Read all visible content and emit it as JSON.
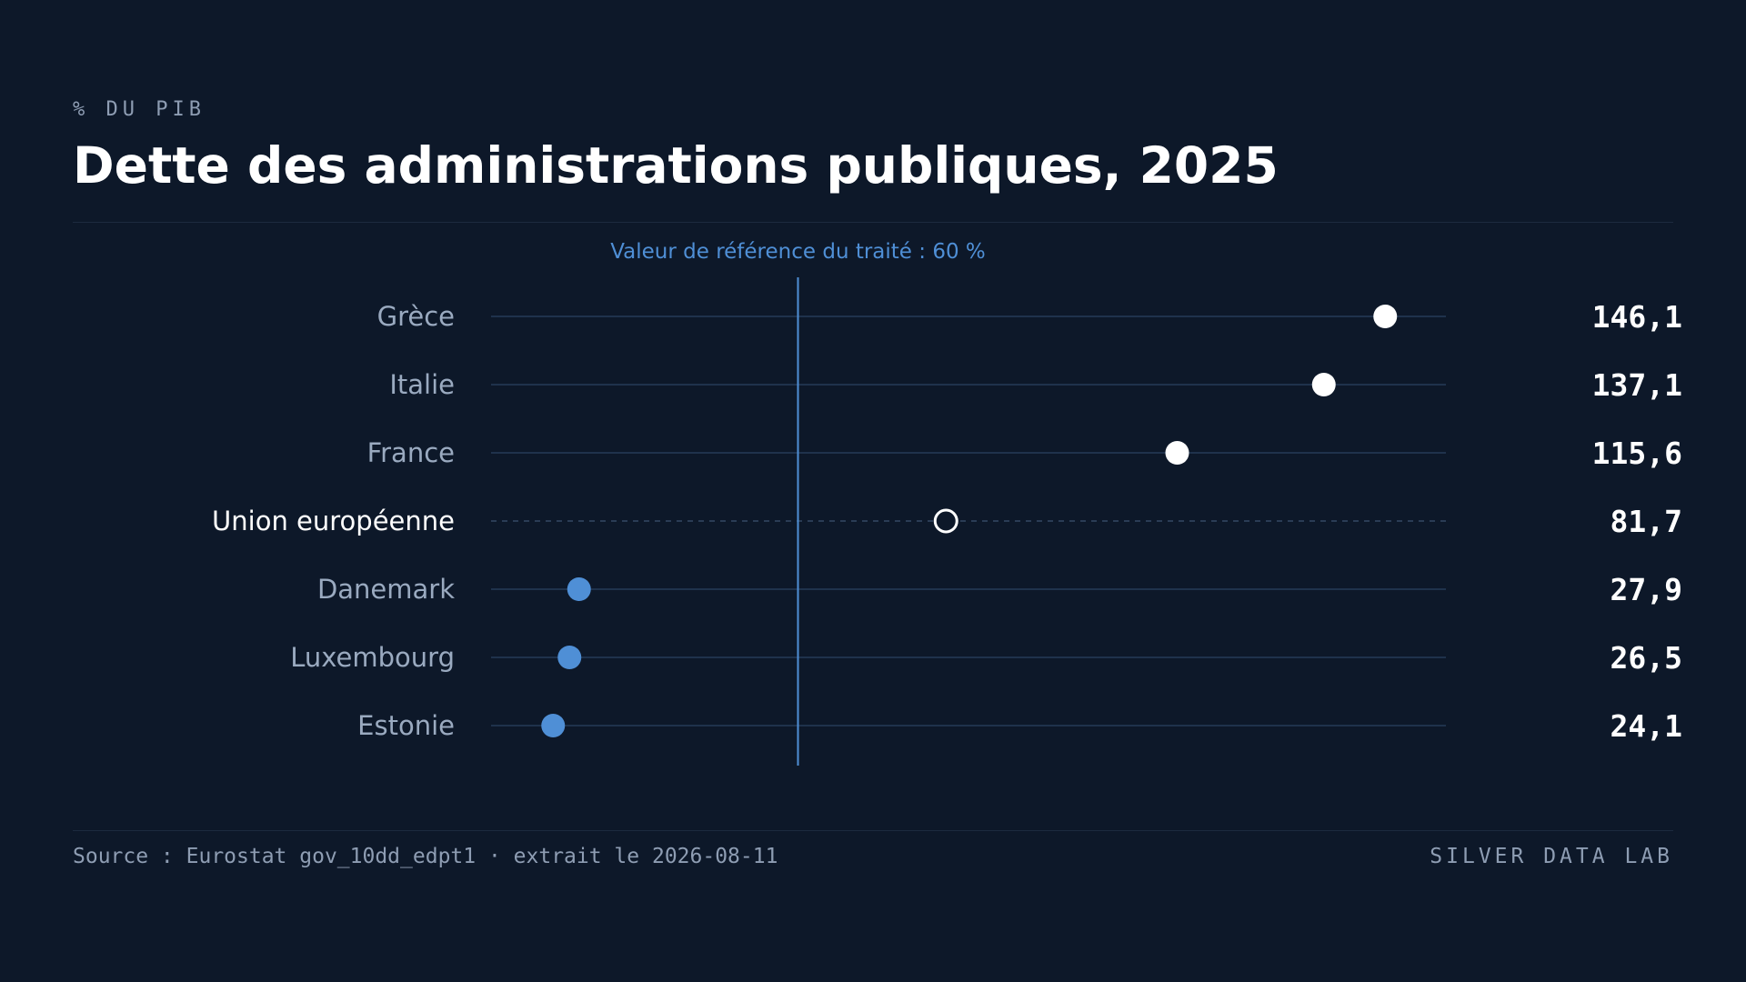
{
  "header": {
    "eyebrow": "% DU PIB",
    "title": "Dette des administrations publiques, 2025"
  },
  "footer": {
    "source": "Source : Eurostat gov_10dd_edpt1 · extrait le 2026-08-11",
    "brand": "SILVER DATA LAB"
  },
  "colors": {
    "background": "#0d1829",
    "accent": "#4f8fd6",
    "above_reference": "#ffffff",
    "below_reference": "#4f8fd6",
    "track": "#1f324c",
    "label": "#9aaac0",
    "highlight_label": "#ffffff"
  },
  "chart_data": {
    "type": "dot",
    "unit": "% du PIB",
    "xlim": [
      15,
      155
    ],
    "reference": {
      "value": 60,
      "label": "Valeur de référence du traité : 60 %"
    },
    "categories": [
      "Grèce",
      "Italie",
      "France",
      "Union européenne",
      "Danemark",
      "Luxembourg",
      "Estonie"
    ],
    "values": [
      146.1,
      137.1,
      115.6,
      81.7,
      27.9,
      26.5,
      24.1
    ],
    "value_labels": [
      "146,1",
      "137,1",
      "115,6",
      "81,7",
      "27,9",
      "26,5",
      "24,1"
    ],
    "highlight": "Union européenne"
  }
}
